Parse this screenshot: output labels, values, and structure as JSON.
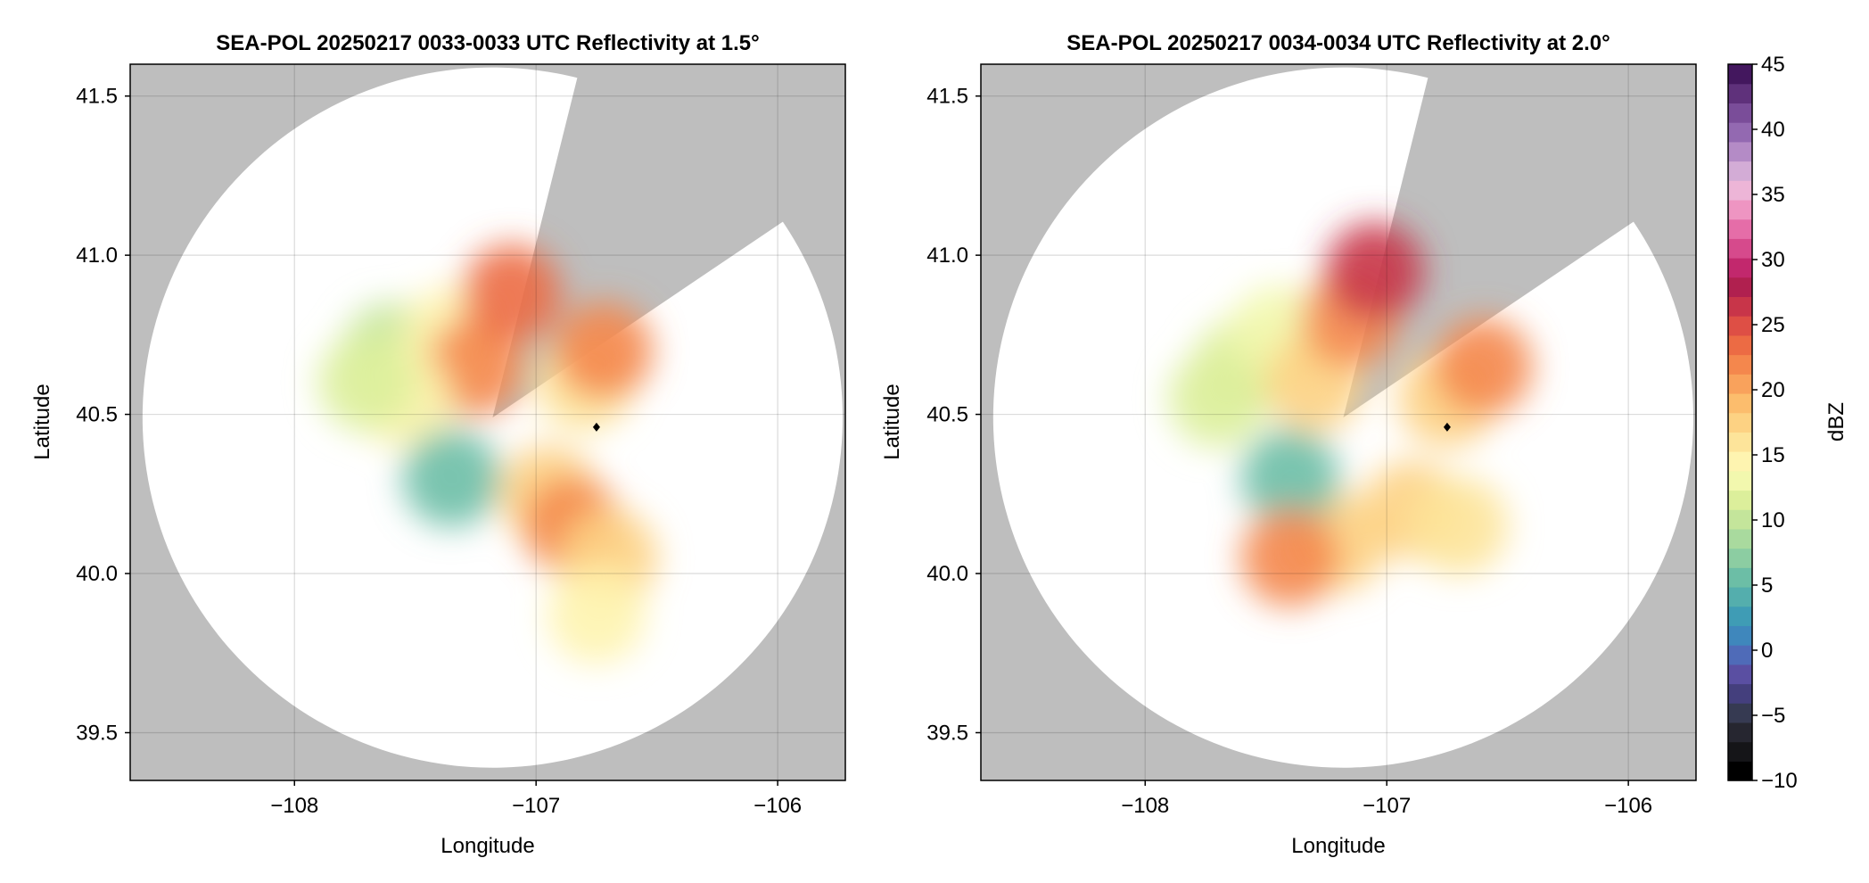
{
  "chart_data": [
    {
      "type": "heatmap",
      "title": "SEA-POL 20250217 0033-0033 UTC Reflectivity at 1.5°",
      "xlabel": "Longitude",
      "ylabel": "Latitude",
      "xlim": [
        -108.68,
        -105.72
      ],
      "ylim": [
        39.35,
        41.6
      ],
      "xticks": [
        -108,
        -107,
        -106
      ],
      "xtick_labels": [
        "−108",
        "−107",
        "−106"
      ],
      "yticks": [
        39.5,
        40.0,
        40.5,
        41.0,
        41.5
      ],
      "ytick_labels": [
        "39.5",
        "40.0",
        "40.5",
        "41.0",
        "41.5"
      ],
      "grid": true,
      "background_color": "#bebebe",
      "radar": {
        "lon": -107.18,
        "lat": 40.49,
        "range_deg": 1.1,
        "blocked_sector_deg": [
          14,
          56
        ]
      },
      "marker": {
        "lon": -106.75,
        "lat": 40.46
      },
      "echoes": [
        {
          "lon": -107.6,
          "lat": 40.7,
          "dbz": 10
        },
        {
          "lon": -107.45,
          "lat": 40.62,
          "dbz": 12
        },
        {
          "lon": -107.35,
          "lat": 40.75,
          "dbz": 15
        },
        {
          "lon": -107.25,
          "lat": 40.65,
          "dbz": 22
        },
        {
          "lon": -107.1,
          "lat": 40.88,
          "dbz": 24
        },
        {
          "lon": -107.55,
          "lat": 40.55,
          "dbz": 14
        },
        {
          "lon": -107.7,
          "lat": 40.6,
          "dbz": 11
        },
        {
          "lon": -106.8,
          "lat": 40.6,
          "dbz": 16
        },
        {
          "lon": -106.72,
          "lat": 40.7,
          "dbz": 22
        },
        {
          "lon": -106.95,
          "lat": 40.25,
          "dbz": 18
        },
        {
          "lon": -106.85,
          "lat": 40.15,
          "dbz": 22
        },
        {
          "lon": -106.7,
          "lat": 40.05,
          "dbz": 18
        },
        {
          "lon": -107.35,
          "lat": 40.3,
          "dbz": 5
        },
        {
          "lon": -106.75,
          "lat": 39.87,
          "dbz": 14
        }
      ]
    },
    {
      "type": "heatmap",
      "title": "SEA-POL 20250217 0034-0034 UTC Reflectivity at 2.0°",
      "xlabel": "Longitude",
      "ylabel": "Latitude",
      "xlim": [
        -108.68,
        -105.72
      ],
      "ylim": [
        39.35,
        41.6
      ],
      "xticks": [
        -108,
        -107,
        -106
      ],
      "xtick_labels": [
        "−108",
        "−107",
        "−106"
      ],
      "yticks": [
        39.5,
        40.0,
        40.5,
        41.0,
        41.5
      ],
      "ytick_labels": [
        "39.5",
        "40.0",
        "40.5",
        "41.0",
        "41.5"
      ],
      "grid": true,
      "background_color": "#bebebe",
      "radar": {
        "lon": -107.18,
        "lat": 40.49,
        "range_deg": 1.1,
        "blocked_sector_deg": [
          14,
          56
        ]
      },
      "marker": {
        "lon": -106.75,
        "lat": 40.46
      },
      "echoes": [
        {
          "lon": -107.6,
          "lat": 40.65,
          "dbz": 11
        },
        {
          "lon": -107.45,
          "lat": 40.75,
          "dbz": 13
        },
        {
          "lon": -107.3,
          "lat": 40.6,
          "dbz": 18
        },
        {
          "lon": -107.15,
          "lat": 40.8,
          "dbz": 22
        },
        {
          "lon": -107.05,
          "lat": 40.95,
          "dbz": 26
        },
        {
          "lon": -107.7,
          "lat": 40.55,
          "dbz": 12
        },
        {
          "lon": -106.75,
          "lat": 40.55,
          "dbz": 18
        },
        {
          "lon": -106.6,
          "lat": 40.65,
          "dbz": 22
        },
        {
          "lon": -106.9,
          "lat": 40.2,
          "dbz": 17
        },
        {
          "lon": -106.7,
          "lat": 40.15,
          "dbz": 16
        },
        {
          "lon": -107.2,
          "lat": 40.1,
          "dbz": 18
        },
        {
          "lon": -107.4,
          "lat": 40.3,
          "dbz": 6
        },
        {
          "lon": -107.4,
          "lat": 40.05,
          "dbz": 22
        }
      ]
    }
  ],
  "colorbar": {
    "label": "dBZ",
    "min": -10,
    "max": 45,
    "ticks": [
      -10,
      -5,
      0,
      5,
      10,
      15,
      20,
      25,
      30,
      35,
      40,
      45
    ],
    "tick_labels": [
      "−10",
      "−5",
      "0",
      "5",
      "10",
      "15",
      "20",
      "25",
      "30",
      "35",
      "40",
      "45"
    ],
    "colors": [
      "#000000",
      "#151518",
      "#262630",
      "#363a52",
      "#443f7d",
      "#5a4fa2",
      "#4f6bb8",
      "#3f87bc",
      "#3f9cb5",
      "#54aead",
      "#6cbea6",
      "#8ccda2",
      "#a9da9e",
      "#c4e59b",
      "#dcef9b",
      "#f2f8ae",
      "#fef4b0",
      "#fde49a",
      "#fdd283",
      "#fcbd6d",
      "#f9a25c",
      "#f4874d",
      "#ec6b44",
      "#de4f45",
      "#c83549",
      "#b0204f",
      "#c2286d",
      "#d64a8c",
      "#e56da8",
      "#ee95c2",
      "#edb5d7",
      "#d3acd6",
      "#b48bc6",
      "#9369b1",
      "#7a4d99",
      "#5f317b",
      "#43175e"
    ]
  }
}
